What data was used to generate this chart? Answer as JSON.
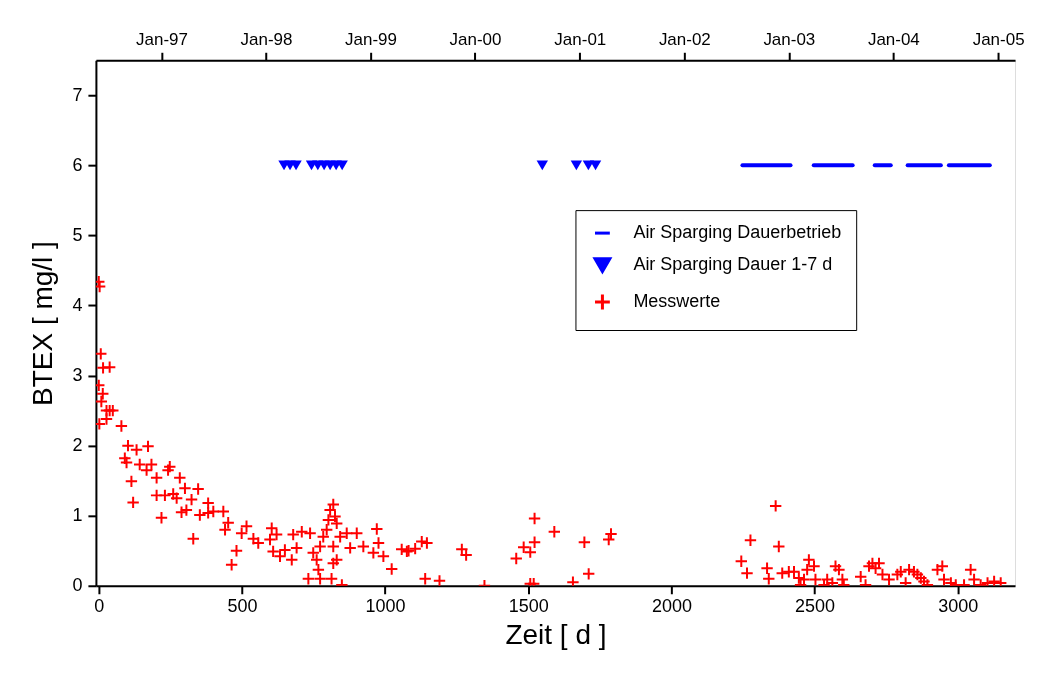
{
  "chart_data": {
    "type": "scatter",
    "xlabel": "Zeit   [ d ]",
    "ylabel": "BTEX [ mg/l ]",
    "xlim": [
      -10,
      3200
    ],
    "xticks": [
      0,
      500,
      1000,
      1500,
      2000,
      2500,
      3000
    ],
    "x2lim": [
      "1996-05-17",
      "2005-03-01"
    ],
    "x2ticks": [
      {
        "value": "1997-01-01",
        "label": "Jan-97"
      },
      {
        "value": "1998-01-01",
        "label": "Jan-98"
      },
      {
        "value": "1999-01-01",
        "label": "Jan-99"
      },
      {
        "value": "2000-01-01",
        "label": "Jan-00"
      },
      {
        "value": "2001-01-01",
        "label": "Jan-01"
      },
      {
        "value": "2002-01-01",
        "label": "Jan-02"
      },
      {
        "value": "2003-01-01",
        "label": "Jan-03"
      },
      {
        "value": "2004-01-01",
        "label": "Jan-04"
      },
      {
        "value": "2005-01-01",
        "label": "Jan-05"
      }
    ],
    "ylim": [
      0,
      7.5
    ],
    "yticks": [
      0,
      1,
      2,
      3,
      4,
      5,
      6,
      7
    ],
    "grid": false,
    "legend": "right",
    "series": [
      {
        "name": "Air Sparging Dauerbetrieb",
        "type": "line",
        "color": "#0000ff",
        "marker": "none",
        "line_style": "solid",
        "x": [
          2248,
          2416,
          null,
          2497,
          2633,
          null,
          2710,
          2766,
          null,
          2825,
          2941,
          null,
          2969,
          3112
        ],
        "values": [
          6,
          6,
          null,
          6,
          6,
          null,
          6,
          6,
          null,
          6,
          6,
          null,
          6,
          6
        ]
      },
      {
        "name": "Air Sparging Dauer 1-7 d",
        "color": "#0000ff",
        "marker": "triangle",
        "x": [
          647,
          668,
          689,
          743,
          765,
          787,
          808,
          829,
          850,
          1549,
          1668,
          1710,
          1735
        ],
        "values": [
          6,
          6,
          6,
          6,
          6,
          6,
          6,
          6,
          6,
          6,
          6,
          6,
          6
        ]
      },
      {
        "name": "Messwerte",
        "color": "#ff0000",
        "marker": "cross",
        "x": [
          0,
          3,
          7,
          15,
          38,
          0,
          14,
          9,
          27,
          38,
          49,
          27,
          2,
          79,
          102,
          132,
          172,
          91,
          97,
          143,
          167,
          184,
          202,
          242,
          248,
          114,
          283,
          301,
          347,
          202,
          231,
          260,
          272,
          120,
          324,
          306,
          289,
          382,
          382,
          400,
          435,
          353,
          219,
          452,
          441,
          516,
          499,
          481,
          464,
          330,
          540,
          557,
          604,
          621,
          598,
          609,
          633,
          650,
          674,
          691,
          679,
          709,
          738,
          749,
          761,
          773,
          784,
          796,
          802,
          808,
          819,
          825,
          831,
          843,
          819,
          831,
          819,
          732,
          767,
          773,
          813,
          849,
          866,
          901,
          878,
          924,
          959,
          971,
          977,
          994,
          1023,
          1058,
          1082,
          1076,
          1105,
          1128,
          1146,
          1140,
          1190,
          1268,
          1283,
          1347,
          1458,
          1484,
          1507,
          1522,
          1522,
          1591,
          1507,
          1519,
          1656,
          1711,
          1696,
          1781,
          1789,
          2244,
          2264,
          2276,
          2364,
          2375,
          2334,
          2340,
          2387,
          2410,
          2428,
          2445,
          2451,
          2463,
          2480,
          2498,
          2474,
          2503,
          2533,
          2544,
          2562,
          2573,
          2585,
          2597,
          2602,
          2661,
          2678,
          2690,
          2702,
          2713,
          2725,
          2737,
          2760,
          2789,
          2801,
          2818,
          2830,
          2847,
          2859,
          2871,
          2882,
          2894,
          2929,
          2946,
          2952,
          2976,
          2993,
          3022,
          3045,
          3057,
          3080,
          3104,
          3127,
          3150
        ],
        "values": [
          4.34,
          4.27,
          3.31,
          3.11,
          3.12,
          2.86,
          2.74,
          2.63,
          2.5,
          2.5,
          2.5,
          2.38,
          2.31,
          2.28,
          2.0,
          1.94,
          1.99,
          1.82,
          1.76,
          1.73,
          1.65,
          1.73,
          1.54,
          1.65,
          1.7,
          1.49,
          1.54,
          1.39,
          1.38,
          1.29,
          1.29,
          1.31,
          1.25,
          1.19,
          1.23,
          1.08,
          1.05,
          1.18,
          1.04,
          1.06,
          1.06,
          1.01,
          0.97,
          0.9,
          0.8,
          0.85,
          0.75,
          0.5,
          0.3,
          0.67,
          0.67,
          0.61,
          0.82,
          0.73,
          0.66,
          0.49,
          0.42,
          0.51,
          0.37,
          0.54,
          0.73,
          0.77,
          0.75,
          0.47,
          0.37,
          0.56,
          0.7,
          0.8,
          0.94,
          1.08,
          1.16,
          0.99,
          0.89,
          0.7,
          0.56,
          0.37,
          0.32,
          0.1,
          0.23,
          0.1,
          0.1,
          0.01,
          0.75,
          0.75,
          0.54,
          0.56,
          0.47,
          0.81,
          0.61,
          0.42,
          0.24,
          0.52,
          0.5,
          0.49,
          0.53,
          0.63,
          0.61,
          0.1,
          0.07,
          0.52,
          0.44,
          0.0,
          0.39,
          0.55,
          0.48,
          0.62,
          0.96,
          0.77,
          0.03,
          0.03,
          0.05,
          0.17,
          0.62,
          0.66,
          0.74,
          0.35,
          0.18,
          0.65,
          1.14,
          0.56,
          0.25,
          0.1,
          0.18,
          0.2,
          0.2,
          0.11,
          0.01,
          0.09,
          0.37,
          0.28,
          0.23,
          0.09,
          0.01,
          0.09,
          0.04,
          0.28,
          0.23,
          0.09,
          0.01,
          0.13,
          0.01,
          0.28,
          0.32,
          0.25,
          0.32,
          0.16,
          0.09,
          0.16,
          0.2,
          0.04,
          0.23,
          0.2,
          0.16,
          0.11,
          0.06,
          0.01,
          0.23,
          0.28,
          0.09,
          0.04,
          0.01,
          0.01,
          0.23,
          0.09,
          0.01,
          0.04,
          0.06,
          0.04
        ]
      }
    ]
  }
}
